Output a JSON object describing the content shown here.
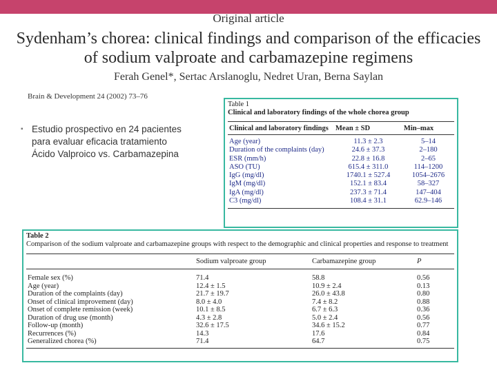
{
  "slide": {
    "section_label": "Original article",
    "title": "Sydenham’s chorea: clinical findings and comparison of the efficacies of sodium valproate and carbamazepine regimens",
    "authors": "Ferah Genel*, Sertac Arslanoglu, Nedret Uran, Berna Saylan",
    "journal": "Brain & Development 24 (2002) 73–76",
    "bullet_lines": [
      "Estudio prospectivo en 24 pacientes",
      "para evaluar eficacia tratamiento",
      "Ácido Valproico vs. Carbamazepina"
    ],
    "accent_color": "#c6436c",
    "frame_color": "#37b8a0"
  },
  "table1": {
    "label": "Table 1",
    "caption": "Clinical and laboratory findings of the whole chorea group",
    "headers": [
      "Clinical and laboratory findings",
      "Mean ± SD",
      "Min–max"
    ],
    "rows": [
      [
        "Age (year)",
        "11.3 ± 2.3",
        "5–14"
      ],
      [
        "Duration of the complaints (day)",
        "24.6 ± 37.3",
        "2–180"
      ],
      [
        "ESR (mm/h)",
        "22.8 ± 16.8",
        "2–65"
      ],
      [
        "ASO (TU)",
        "615.4 ± 311.0",
        "114–1200"
      ],
      [
        "IgG (mg/dl)",
        "1740.1 ± 527.4",
        "1054–2676"
      ],
      [
        "IgM (mg/dl)",
        "152.1 ± 83.4",
        "58–327"
      ],
      [
        "IgA (mg/dl)",
        "237.3 ± 71.4",
        "147–404"
      ],
      [
        "C3 (mg/dl)",
        "108.4 ± 31.1",
        "62.9–146"
      ]
    ]
  },
  "table2": {
    "label": "Table 2",
    "caption": "Comparison of the sodium valproate and carbamazepine groups with respect to the demographic and clinical properties and response to treatment",
    "headers": [
      "",
      "Sodium valproate group",
      "Carbamazepine group",
      "P"
    ],
    "rows": [
      [
        "Female sex (%)",
        "71.4",
        "58.8",
        "0.56"
      ],
      [
        "Age (year)",
        "12.4 ± 1.5",
        "10.9 ± 2.4",
        "0.13"
      ],
      [
        "Duration of the complaints (day)",
        "21.7 ± 19.7",
        "26.0 ± 43.8",
        "0.80"
      ],
      [
        "Onset of clinical improvement (day)",
        "8.0 ± 4.0",
        "7.4 ± 8.2",
        "0.88"
      ],
      [
        "Onset of complete remission (week)",
        "10.1 ± 8.5",
        "6.7 ± 6.3",
        "0.36"
      ],
      [
        "Duration of drug use (month)",
        "4.3 ± 2.8",
        "5.0 ± 2.4",
        "0.56"
      ],
      [
        "Follow-up (month)",
        "32.6 ± 17.5",
        "34.6 ± 15.2",
        "0.77"
      ],
      [
        "Recurrences (%)",
        "14.3",
        "17.6",
        "0.84"
      ],
      [
        "Generalized chorea (%)",
        "71.4",
        "64.7",
        "0.75"
      ]
    ]
  }
}
